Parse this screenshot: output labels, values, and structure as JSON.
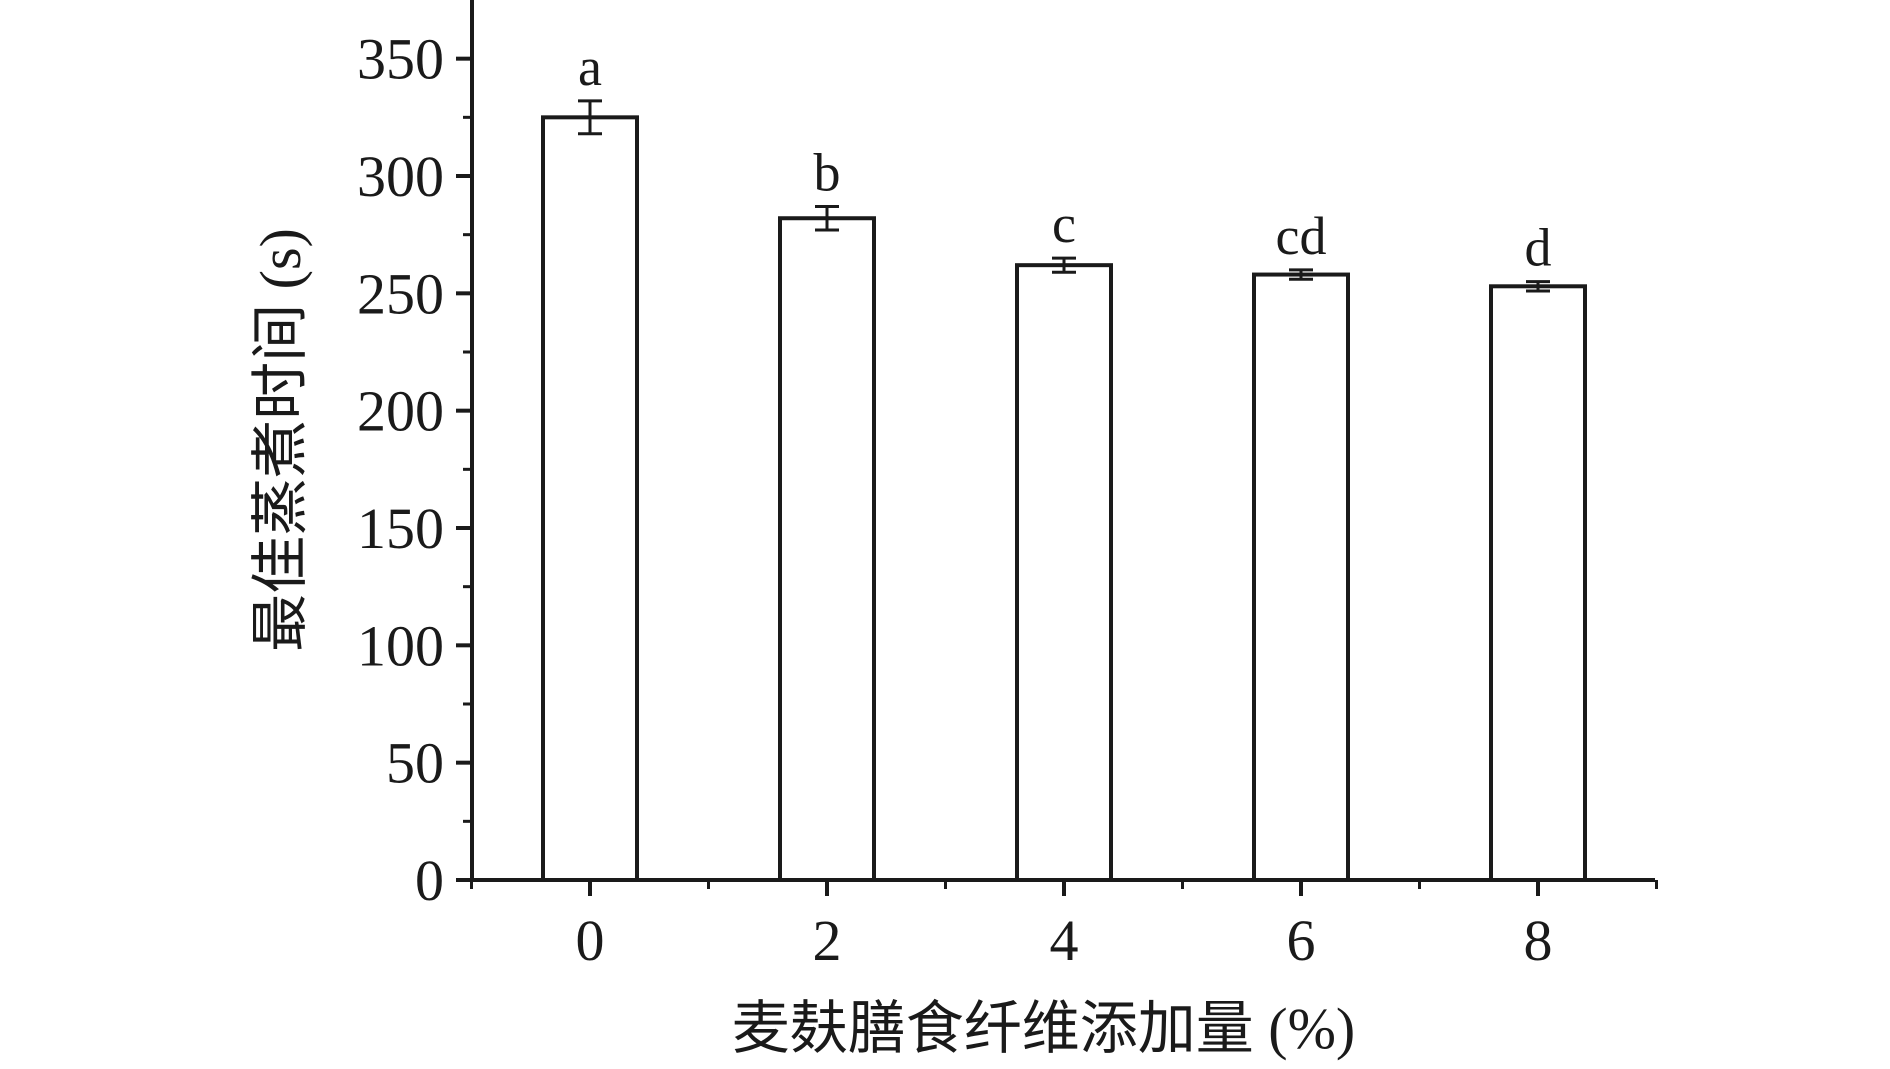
{
  "chart_data": {
    "type": "bar",
    "title": "",
    "xlabel": "麦麸膳食纤维添加量 (%)",
    "ylabel": "最佳蒸煮时间 (s)",
    "categories": [
      "0",
      "2",
      "4",
      "6",
      "8"
    ],
    "values": [
      325,
      282,
      262,
      258,
      253
    ],
    "errors": [
      7,
      5,
      3,
      2,
      2
    ],
    "significance_labels": [
      "a",
      "b",
      "c",
      "cd",
      "d"
    ],
    "ylim": [
      0,
      375
    ],
    "yticks": [
      0,
      50,
      100,
      150,
      200,
      250,
      300,
      350
    ],
    "ytick_labels": [
      "0",
      "50",
      "100",
      "150",
      "200",
      "250",
      "300",
      "350"
    ],
    "grid": false,
    "bar_fill": "#ffffff",
    "bar_edge": "#1a1a1a"
  }
}
